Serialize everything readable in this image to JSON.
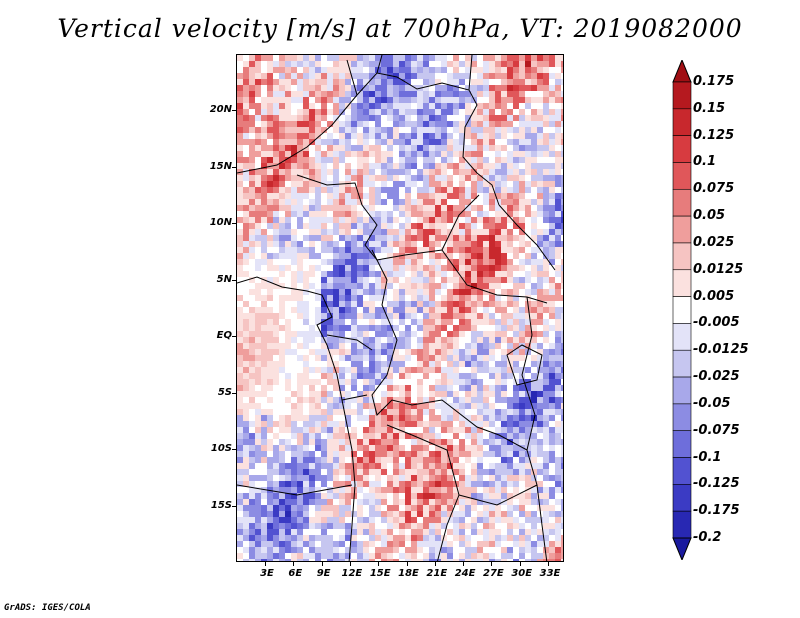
{
  "title": "Vertical velocity [m/s] at 700hPa, VT: 2019082000",
  "credit": "GrADS: IGES/COLA",
  "map": {
    "lat_labels": [
      "20N",
      "15N",
      "10N",
      "5N",
      "EQ",
      "5S",
      "10S",
      "15S"
    ],
    "lon_labels": [
      "3E",
      "6E",
      "9E",
      "12E",
      "15E",
      "18E",
      "21E",
      "24E",
      "27E",
      "30E",
      "33E"
    ],
    "field_name": "vertical velocity"
  },
  "colorbar": {
    "labels": [
      "0.175",
      "0.15",
      "0.125",
      "0.1",
      "0.075",
      "0.05",
      "0.025",
      "0.0125",
      "0.005",
      "-0.005",
      "-0.0125",
      "-0.025",
      "-0.05",
      "-0.075",
      "-0.1",
      "-0.125",
      "-0.175",
      "-0.2"
    ],
    "colors": [
      "#a00f14",
      "#b5191f",
      "#c8282d",
      "#d73b40",
      "#e0575a",
      "#e77c7c",
      "#ef9e9c",
      "#f6c4c2",
      "#fbe1df",
      "#ffffff",
      "#e3e3f8",
      "#c6c6f0",
      "#a8a8ea",
      "#8c8ce3",
      "#6e6edb",
      "#5252d1",
      "#3b3bc4",
      "#2828b3",
      "#1a1a9e"
    ]
  }
}
